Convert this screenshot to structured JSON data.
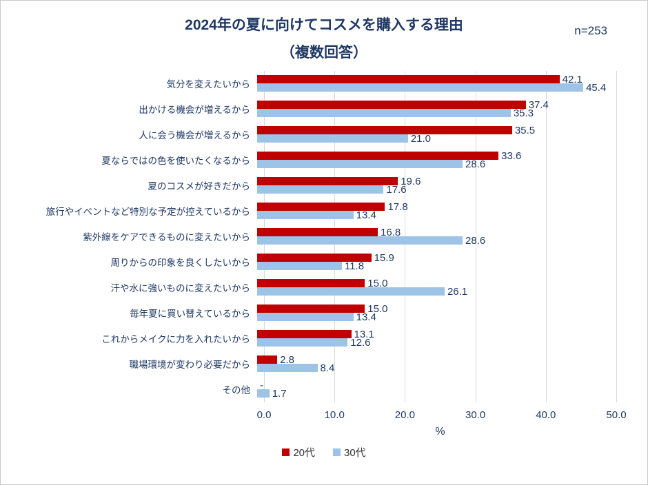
{
  "title": {
    "line1": "2024年の夏に向けてコスメを購入する理由",
    "line2": "（複数回答）"
  },
  "sample_size": "n=253",
  "axis": {
    "ticks": [
      "0.0",
      "10.0",
      "20.0",
      "30.0",
      "40.0",
      "50.0"
    ],
    "unit": "%"
  },
  "legend": [
    {
      "label": "20代",
      "color": "#C00000"
    },
    {
      "label": "30代",
      "color": "#9DC3E6"
    }
  ],
  "chart_data": {
    "type": "bar",
    "orientation": "horizontal",
    "title": "2024年の夏に向けてコスメを購入する理由（複数回答）",
    "xlabel": "%",
    "xlim": [
      0,
      50
    ],
    "grid": true,
    "legend_position": "bottom",
    "categories": [
      "気分を変えたいから",
      "出かける機会が増えるから",
      "人に会う機会が増えるから",
      "夏ならではの色を使いたくなるから",
      "夏のコスメが好きだから",
      "旅行やイベントなど特別な予定が控えているから",
      "紫外線をケアできるものに変えたいから",
      "周りからの印象を良くしたいから",
      "汗や水に強いものに変えたいから",
      "毎年夏に買い替えているから",
      "これからメイクに力を入れたいから",
      "職場環境が変わり必要だから",
      "その他"
    ],
    "series": [
      {
        "name": "20代",
        "color": "#C00000",
        "values": [
          42.1,
          37.4,
          35.5,
          33.6,
          19.6,
          17.8,
          16.8,
          15.9,
          15.0,
          15.0,
          13.1,
          2.8,
          0.0
        ],
        "labels": [
          "42.1",
          "37.4",
          "35.5",
          "33.6",
          "19.6",
          "17.8",
          "16.8",
          "15.9",
          "15.0",
          "15.0",
          "13.1",
          "2.8",
          "-"
        ]
      },
      {
        "name": "30代",
        "color": "#9DC3E6",
        "values": [
          45.4,
          35.3,
          21.0,
          28.6,
          17.6,
          13.4,
          28.6,
          11.8,
          26.1,
          13.4,
          12.6,
          8.4,
          1.7
        ],
        "labels": [
          "45.4",
          "35.3",
          "21.0",
          "28.6",
          "17.6",
          "13.4",
          "28.6",
          "11.8",
          "26.1",
          "13.4",
          "12.6",
          "8.4",
          "1.7"
        ]
      }
    ]
  }
}
